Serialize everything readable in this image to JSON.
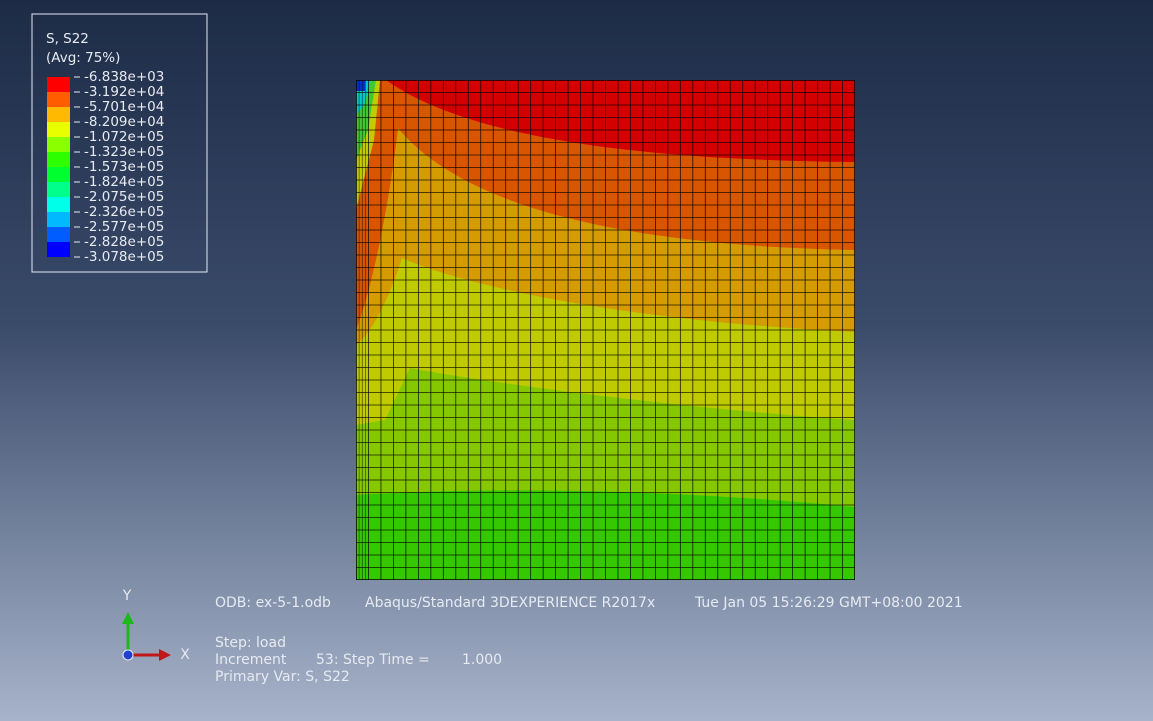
{
  "legend": {
    "title": "S, S22",
    "subtitle": "(Avg: 75%)",
    "labels": [
      "-6.838e+03",
      "-3.192e+04",
      "-5.701e+04",
      "-8.209e+04",
      "-1.072e+05",
      "-1.323e+05",
      "-1.573e+05",
      "-1.824e+05",
      "-2.075e+05",
      "-2.326e+05",
      "-2.577e+05",
      "-2.828e+05",
      "-3.078e+05"
    ],
    "colors": [
      "#ff0000",
      "#ff5d00",
      "#ffb900",
      "#e8ff00",
      "#8bff00",
      "#2eff00",
      "#00ff2e",
      "#00ff8b",
      "#00ffe8",
      "#00b9ff",
      "#005dff",
      "#0000ff"
    ]
  },
  "triad": {
    "y": "Y",
    "x": "X"
  },
  "info": {
    "odb": "ODB: ex-5-1.odb",
    "solver": "Abaqus/Standard 3DEXPERIENCE R2017x",
    "date": "Tue Jan 05 15:26:29 GMT+08:00 2021",
    "step": "Step: load",
    "increment": "Increment",
    "increment_value": "53: Step Time =",
    "step_time": "1.000",
    "primary_var": "Primary Var: S, S22"
  }
}
